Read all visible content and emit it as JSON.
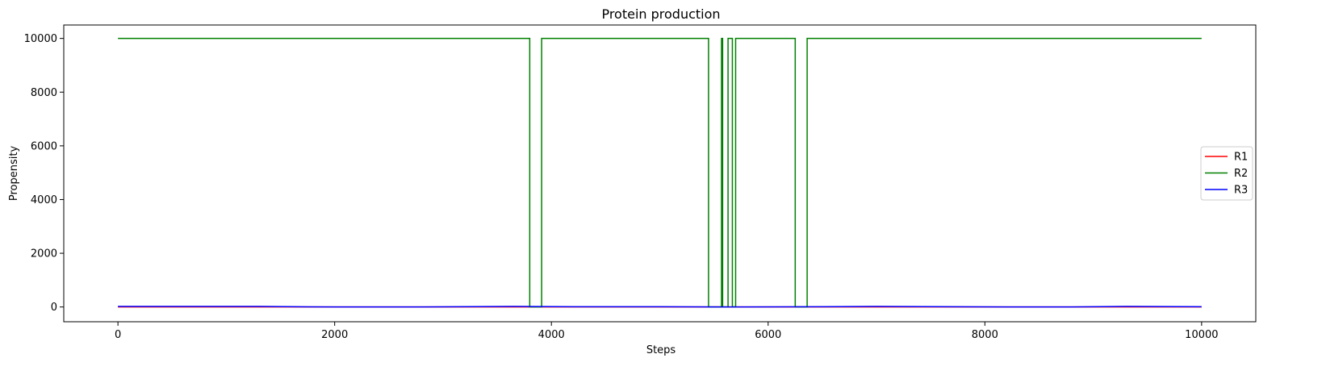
{
  "chart_data": {
    "type": "line",
    "title": "Protein production",
    "xlabel": "Steps",
    "ylabel": "Propensity",
    "xlim": [
      -500,
      10500
    ],
    "ylim": [
      -550,
      10500
    ],
    "xticks": [
      0,
      2000,
      4000,
      6000,
      8000,
      10000
    ],
    "yticks": [
      0,
      2000,
      4000,
      6000,
      8000,
      10000
    ],
    "grid": false,
    "legend_position": "center-right",
    "series": [
      {
        "name": "R1",
        "color": "#ff0000",
        "x": [
          0,
          10000
        ],
        "y": [
          0,
          0
        ]
      },
      {
        "name": "R2",
        "color": "#008000",
        "x": [
          0,
          3800,
          3800,
          3910,
          3910,
          5450,
          5450,
          5570,
          5570,
          5580,
          5580,
          5630,
          5630,
          5670,
          5670,
          5700,
          5700,
          6250,
          6250,
          6360,
          6360,
          10000
        ],
        "y": [
          10000,
          10000,
          0,
          0,
          10000,
          10000,
          0,
          0,
          10000,
          10000,
          0,
          0,
          10000,
          10000,
          0,
          0,
          10000,
          10000,
          0,
          0,
          10000,
          10000
        ]
      },
      {
        "name": "R3",
        "color": "#0000ff",
        "x": [
          0,
          1300,
          2000,
          2800,
          3650,
          4200,
          5000,
          5800,
          6500,
          7000,
          8200,
          8800,
          9300,
          10000
        ],
        "y": [
          20,
          20,
          0,
          0,
          20,
          10,
          10,
          0,
          10,
          20,
          0,
          0,
          20,
          10
        ]
      }
    ]
  }
}
